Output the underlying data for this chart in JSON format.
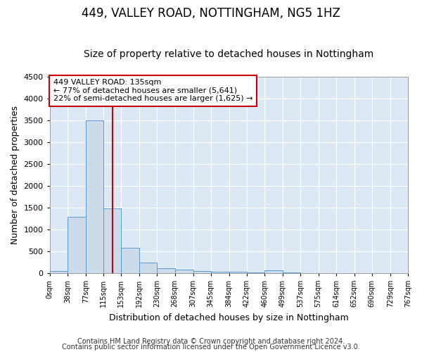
{
  "title1": "449, VALLEY ROAD, NOTTINGHAM, NG5 1HZ",
  "title2": "Size of property relative to detached houses in Nottingham",
  "xlabel": "Distribution of detached houses by size in Nottingham",
  "ylabel": "Number of detached properties",
  "footnote1": "Contains HM Land Registry data © Crown copyright and database right 2024.",
  "footnote2": "Contains public sector information licensed under the Open Government Licence v3.0.",
  "property_label": "449 VALLEY ROAD: 135sqm",
  "annotation_line1": "← 77% of detached houses are smaller (5,641)",
  "annotation_line2": "22% of semi-detached houses are larger (1,625) →",
  "bar_edges": [
    0,
    38,
    77,
    115,
    153,
    192,
    230,
    268,
    307,
    345,
    384,
    422,
    460,
    499,
    537,
    575,
    614,
    652,
    690,
    729,
    767
  ],
  "bar_heights": [
    50,
    1280,
    3500,
    1480,
    580,
    240,
    115,
    80,
    50,
    30,
    20,
    10,
    55,
    5,
    0,
    0,
    0,
    0,
    0,
    0
  ],
  "bar_color": "#ccdaea",
  "bar_edgecolor": "#5b9bd5",
  "vline_color": "#cc0000",
  "vline_x": 135,
  "annotation_box_color": "#cc0000",
  "ylim": [
    0,
    4500
  ],
  "xlim": [
    0,
    767
  ],
  "bg_color": "#ffffff",
  "plot_bg_color": "#dce9f5",
  "grid_color": "#ffffff",
  "title1_fontsize": 12,
  "title2_fontsize": 10,
  "xlabel_fontsize": 9,
  "ylabel_fontsize": 9,
  "footnote_fontsize": 7
}
